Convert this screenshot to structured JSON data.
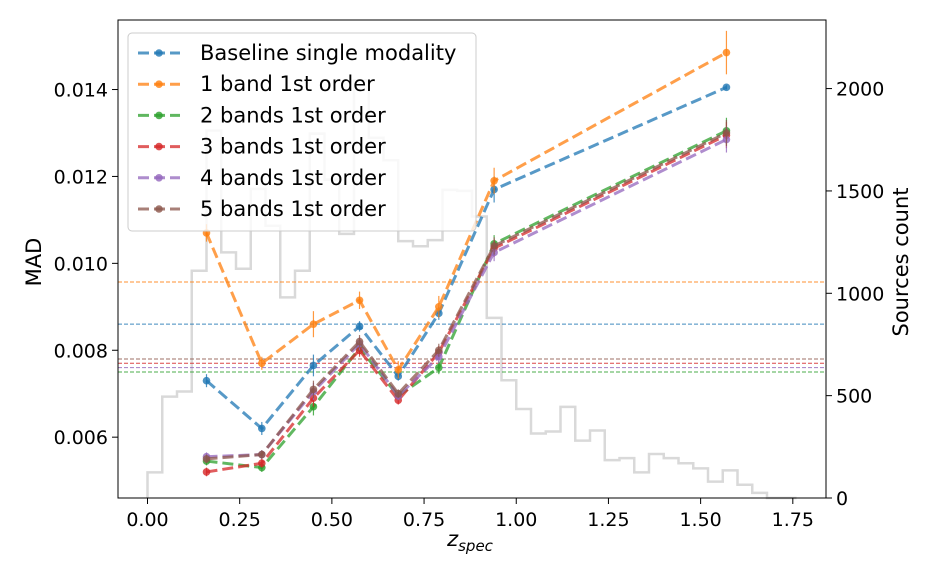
{
  "chart_data": {
    "type": "line",
    "xlabel_main": "z",
    "xlabel_sub": "spec",
    "ylabel_left": "MAD",
    "ylabel_right": "Sources count",
    "xlim": [
      -0.08,
      1.84
    ],
    "ylim_left": [
      0.0046,
      0.0156
    ],
    "ylim_right": [
      0,
      2335
    ],
    "x_ticks": [
      "0.00",
      "0.25",
      "0.50",
      "0.75",
      "1.00",
      "1.25",
      "1.50",
      "1.75"
    ],
    "y_left_ticks": [
      "0.006",
      "0.008",
      "0.010",
      "0.012",
      "0.014"
    ],
    "y_right_ticks": [
      "0",
      "500",
      "1000",
      "1500",
      "2000"
    ],
    "legend_position": "upper-left",
    "x": [
      0.16,
      0.31,
      0.45,
      0.575,
      0.68,
      0.79,
      0.94,
      1.57
    ],
    "series": [
      {
        "name": "Baseline single modality",
        "color": "#1f77b4",
        "values": [
          0.0073,
          0.0062,
          0.00765,
          0.00855,
          0.0074,
          0.00885,
          0.0117,
          0.01405
        ],
        "errors": [
          0.00015,
          0.00015,
          0.00025,
          0.00012,
          0.0001,
          0.00015,
          0.0003,
          5e-05
        ],
        "hline": 0.0086
      },
      {
        "name": "1 band  1st order",
        "color": "#ff7f0e",
        "values": [
          0.0107,
          0.0077,
          0.0086,
          0.00915,
          0.00755,
          0.009,
          0.0119,
          0.01485
        ],
        "errors": [
          0.0002,
          0.00015,
          0.0003,
          0.0002,
          0.0002,
          0.00025,
          0.0003,
          0.0005
        ],
        "hline": 0.00957
      },
      {
        "name": "2 bands 1st order",
        "color": "#2ca02c",
        "values": [
          0.00545,
          0.0053,
          0.0067,
          0.00805,
          0.00695,
          0.0076,
          0.01045,
          0.01305
        ],
        "errors": [
          0.0001,
          0.0001,
          0.0002,
          0.00015,
          0.0001,
          0.00015,
          0.0002,
          0.0003
        ],
        "hline": 0.0075
      },
      {
        "name": "3 bands 1st order",
        "color": "#d62728",
        "values": [
          0.0052,
          0.0054,
          0.0069,
          0.008,
          0.00685,
          0.00795,
          0.01035,
          0.01295
        ],
        "errors": [
          0.0001,
          0.0001,
          0.0002,
          0.00015,
          0.0001,
          0.00015,
          0.0002,
          0.0003
        ],
        "hline": 0.0077
      },
      {
        "name": "4 bands 1st order",
        "color": "#9467bd",
        "values": [
          0.00555,
          0.0056,
          0.00705,
          0.00815,
          0.00695,
          0.00785,
          0.01025,
          0.01285
        ],
        "errors": [
          0.0001,
          0.0001,
          0.0002,
          0.00015,
          0.0001,
          0.00015,
          0.0002,
          0.0003
        ],
        "hline": 0.0076
      },
      {
        "name": "5 bands 1st order",
        "color": "#8c564b",
        "values": [
          0.0055,
          0.0056,
          0.0071,
          0.0082,
          0.007,
          0.008,
          0.0104,
          0.013
        ],
        "errors": [
          0.0001,
          0.0001,
          0.0002,
          0.00015,
          0.0001,
          0.00015,
          0.0002,
          0.0003
        ],
        "hline": 0.0078
      }
    ],
    "histogram": {
      "color": "#d9d9d9",
      "bin_edges": [
        0.0,
        0.04,
        0.08,
        0.12,
        0.16,
        0.2,
        0.24,
        0.28,
        0.32,
        0.36,
        0.4,
        0.44,
        0.48,
        0.52,
        0.56,
        0.6,
        0.64,
        0.68,
        0.72,
        0.76,
        0.8,
        0.84,
        0.88,
        0.92,
        0.96,
        1.0,
        1.04,
        1.08,
        1.12,
        1.16,
        1.2,
        1.24,
        1.28,
        1.32,
        1.36,
        1.4,
        1.44,
        1.48,
        1.52,
        1.56,
        1.6,
        1.64,
        1.68,
        1.72,
        1.76
      ],
      "counts": [
        125,
        495,
        520,
        1110,
        1795,
        1200,
        1120,
        1510,
        1330,
        980,
        1110,
        1780,
        1555,
        1290,
        2040,
        1760,
        1650,
        1255,
        1230,
        1260,
        1505,
        1500,
        1375,
        880,
        575,
        435,
        315,
        325,
        445,
        280,
        330,
        185,
        195,
        125,
        215,
        195,
        170,
        145,
        80,
        135,
        65,
        25,
        0,
        0
      ]
    }
  }
}
